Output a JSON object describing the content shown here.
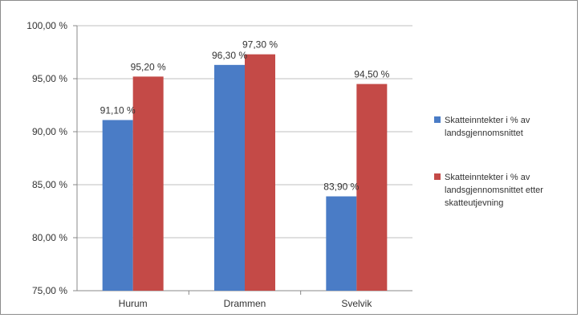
{
  "chart_data": {
    "type": "bar",
    "title": "",
    "xlabel": "",
    "ylabel": "",
    "categories": [
      "Hurum",
      "Drammen",
      "Svelvik"
    ],
    "series": [
      {
        "name": "Skatteinntekter i % av landsgjennomsnittet",
        "color": "#4a7cc6",
        "values": [
          91.1,
          96.3,
          83.9
        ],
        "labels": [
          "91,10 %",
          "96,30 %",
          "83,90 %"
        ]
      },
      {
        "name": "Skatteinntekter i % av landsgjennomsnittet etter skatteutjevning",
        "color": "#c44a47",
        "values": [
          95.2,
          97.3,
          94.5
        ],
        "labels": [
          "95,20 %",
          "97,30 %",
          "94,50 %"
        ]
      }
    ],
    "ylim": [
      75,
      100
    ],
    "yticks": [
      75,
      80,
      85,
      90,
      95,
      100
    ],
    "ytick_labels": [
      "75,00 %",
      "80,00 %",
      "85,00 %",
      "90,00 %",
      "95,00 %",
      "100,00 %"
    ],
    "grid": true,
    "legend_position": "right"
  }
}
